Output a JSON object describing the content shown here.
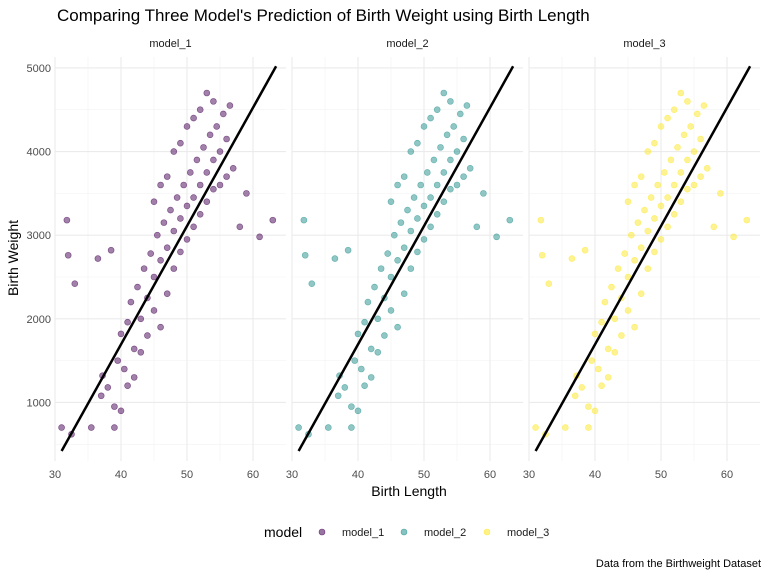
{
  "chart_data": {
    "type": "scatter",
    "title": "Comparing Three Model's Prediction of Birth Weight using Birth Length",
    "xlabel": "Birth Length",
    "ylabel": "Birth Weight",
    "caption": "Data from the Birthweight Dataset",
    "xlim": [
      30,
      65
    ],
    "ylim": [
      300,
      5250
    ],
    "x_ticks": [
      30,
      40,
      50,
      60
    ],
    "y_ticks": [
      1000,
      2000,
      3000,
      4000,
      5000
    ],
    "grid": true,
    "legend_position": "bottom",
    "legend": {
      "title": "model",
      "entries": [
        "model_1",
        "model_2",
        "model_3"
      ]
    },
    "facets": [
      "model_1",
      "model_2",
      "model_3"
    ],
    "colors": {
      "model_1": "#440154",
      "model_2": "#21908C",
      "model_3": "#FDE725"
    },
    "point_alpha": 0.5,
    "fit_line": {
      "x": [
        31,
        63.5
      ],
      "y": [
        420,
        5020
      ],
      "color": "#000000"
    },
    "points": [
      [
        31,
        700
      ],
      [
        31.8,
        3180
      ],
      [
        32,
        2760
      ],
      [
        32.5,
        620
      ],
      [
        33,
        2420
      ],
      [
        35.5,
        700
      ],
      [
        36.5,
        2720
      ],
      [
        37,
        1080
      ],
      [
        37.2,
        1320
      ],
      [
        38,
        1180
      ],
      [
        38.5,
        2820
      ],
      [
        39,
        700
      ],
      [
        39.5,
        1500
      ],
      [
        40,
        1820
      ],
      [
        40.5,
        1400
      ],
      [
        41,
        1960
      ],
      [
        41.5,
        2200
      ],
      [
        42,
        1640
      ],
      [
        42.5,
        2380
      ],
      [
        43,
        2000
      ],
      [
        43.5,
        2600
      ],
      [
        44,
        2250
      ],
      [
        44.5,
        2780
      ],
      [
        45,
        2500
      ],
      [
        45.5,
        3000
      ],
      [
        46,
        2700
      ],
      [
        46.5,
        3150
      ],
      [
        47,
        2850
      ],
      [
        47.5,
        3300
      ],
      [
        48,
        3050
      ],
      [
        48.5,
        3450
      ],
      [
        49,
        3200
      ],
      [
        49.5,
        3600
      ],
      [
        50,
        3350
      ],
      [
        50.5,
        3750
      ],
      [
        51,
        3450
      ],
      [
        51.5,
        3900
      ],
      [
        52,
        3600
      ],
      [
        52.5,
        4050
      ],
      [
        53,
        3750
      ],
      [
        53.5,
        4200
      ],
      [
        54,
        3900
      ],
      [
        54.5,
        4300
      ],
      [
        55,
        4000
      ],
      [
        55.5,
        4450
      ],
      [
        56,
        4150
      ],
      [
        56.5,
        4550
      ],
      [
        57,
        3800
      ],
      [
        58,
        3100
      ],
      [
        59,
        3500
      ],
      [
        61,
        2980
      ],
      [
        63,
        3180
      ],
      [
        47,
        2300
      ],
      [
        48,
        2600
      ],
      [
        49,
        2800
      ],
      [
        50,
        2950
      ],
      [
        51,
        3100
      ],
      [
        52,
        3250
      ],
      [
        53,
        3400
      ],
      [
        54,
        3550
      ],
      [
        46,
        1900
      ],
      [
        45,
        2100
      ],
      [
        44,
        1800
      ],
      [
        43,
        1600
      ],
      [
        42,
        1300
      ],
      [
        41,
        1200
      ],
      [
        40,
        900
      ],
      [
        39,
        950
      ],
      [
        55,
        3600
      ],
      [
        56,
        3700
      ],
      [
        54,
        4600
      ],
      [
        53,
        4700
      ],
      [
        52,
        4500
      ],
      [
        51,
        4400
      ],
      [
        50,
        4300
      ],
      [
        49,
        4100
      ],
      [
        48,
        4000
      ],
      [
        47,
        3700
      ],
      [
        46,
        3600
      ],
      [
        45,
        3400
      ]
    ]
  }
}
